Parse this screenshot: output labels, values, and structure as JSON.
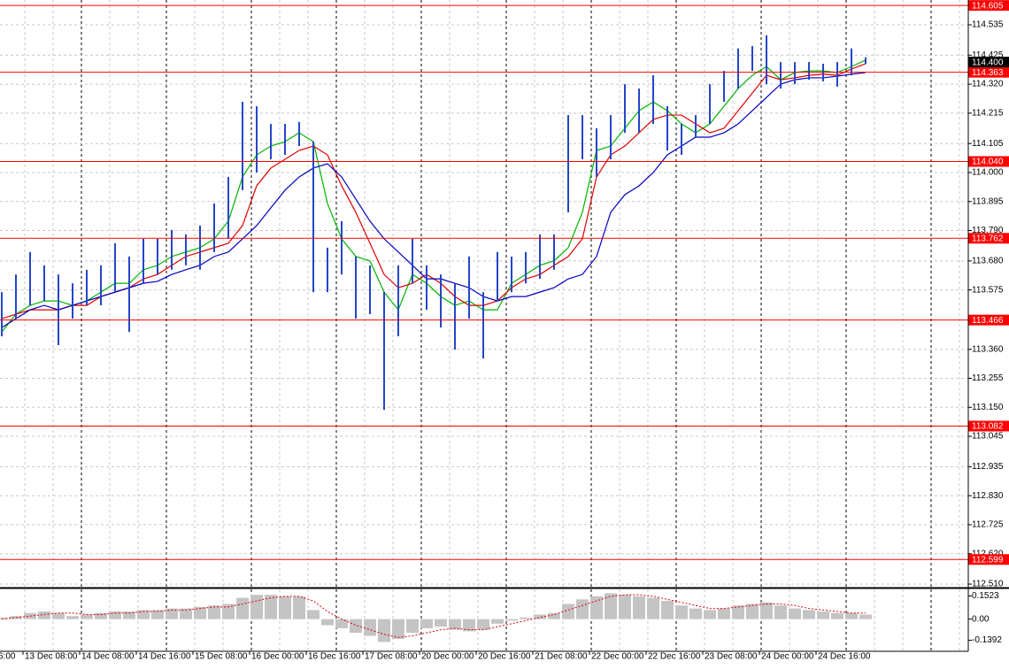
{
  "chart_data": [
    {
      "type": "ohlc",
      "color": "#2346c8",
      "high": [
        113.567,
        113.631,
        113.712,
        113.664,
        113.631,
        113.599,
        113.648,
        113.664,
        113.744,
        113.696,
        113.76,
        113.76,
        113.792,
        113.776,
        113.808,
        113.888,
        113.984,
        114.256,
        114.24,
        114.176,
        114.176,
        114.183,
        114.112,
        113.728,
        113.824,
        113.696,
        113.664,
        113.567,
        113.664,
        113.76,
        113.664,
        113.631,
        113.599,
        113.696,
        113.567,
        113.712,
        113.696,
        113.712,
        113.776,
        113.776,
        114.208,
        114.208,
        114.16,
        114.208,
        114.32,
        114.304,
        114.352,
        114.24,
        114.176,
        114.208,
        114.32,
        114.368,
        114.449,
        114.458,
        114.497,
        114.4,
        114.4,
        114.4,
        114.394,
        114.4,
        114.449,
        114.417
      ],
      "low": [
        113.407,
        113.471,
        113.519,
        113.535,
        113.375,
        113.471,
        113.519,
        113.519,
        113.567,
        113.423,
        113.599,
        113.631,
        113.648,
        113.664,
        113.648,
        113.712,
        113.76,
        113.936,
        114.0,
        114.048,
        114.064,
        114.096,
        113.567,
        113.567,
        113.631,
        113.471,
        113.487,
        113.141,
        113.407,
        113.599,
        113.503,
        113.439,
        113.359,
        113.471,
        113.327,
        113.535,
        113.567,
        113.599,
        113.615,
        113.648,
        113.856,
        114.048,
        113.984,
        114.048,
        114.144,
        114.144,
        114.176,
        114.08,
        114.064,
        114.128,
        114.176,
        114.256,
        114.304,
        114.368,
        114.32,
        114.304,
        114.32,
        114.336,
        114.33,
        114.311,
        114.352,
        114.394
      ],
      "ma": [
        {
          "color": "#00b400",
          "values": [
            113.423,
            113.487,
            113.519,
            113.535,
            113.535,
            113.519,
            113.535,
            113.567,
            113.599,
            113.599,
            113.648,
            113.664,
            113.696,
            113.712,
            113.728,
            113.76,
            113.824,
            113.984,
            114.064,
            114.096,
            114.112,
            114.144,
            114.112,
            113.888,
            113.76,
            113.696,
            113.68,
            113.567,
            113.503,
            113.631,
            113.599,
            113.551,
            113.519,
            113.535,
            113.503,
            113.503,
            113.599,
            113.631,
            113.664,
            113.68,
            113.728,
            113.856,
            114.08,
            114.096,
            114.16,
            114.224,
            114.256,
            114.224,
            114.176,
            114.144,
            114.176,
            114.24,
            114.304,
            114.352,
            114.384,
            114.336,
            114.362,
            114.368,
            114.368,
            114.362,
            114.384,
            114.407
          ]
        },
        {
          "color": "#e00000",
          "values": [
            113.471,
            113.487,
            113.503,
            113.503,
            113.503,
            113.519,
            113.519,
            113.551,
            113.567,
            113.583,
            113.615,
            113.631,
            113.664,
            113.696,
            113.712,
            113.728,
            113.744,
            113.808,
            113.952,
            114.016,
            114.048,
            114.08,
            114.096,
            114.064,
            113.952,
            113.856,
            113.744,
            113.631,
            113.583,
            113.599,
            113.631,
            113.599,
            113.551,
            113.519,
            113.519,
            113.535,
            113.583,
            113.615,
            113.631,
            113.664,
            113.696,
            113.76,
            113.984,
            114.064,
            114.096,
            114.144,
            114.192,
            114.208,
            114.208,
            114.176,
            114.144,
            114.16,
            114.224,
            114.288,
            114.352,
            114.336,
            114.343,
            114.352,
            114.356,
            114.352,
            114.375,
            114.394
          ]
        },
        {
          "color": "#0000c0",
          "values": [
            113.439,
            113.471,
            113.503,
            113.519,
            113.503,
            113.519,
            113.535,
            113.551,
            113.567,
            113.583,
            113.599,
            113.606,
            113.631,
            113.648,
            113.664,
            113.696,
            113.712,
            113.76,
            113.808,
            113.872,
            113.936,
            113.984,
            114.016,
            114.032,
            113.984,
            113.904,
            113.824,
            113.76,
            113.712,
            113.664,
            113.615,
            113.615,
            113.599,
            113.583,
            113.551,
            113.535,
            113.551,
            113.551,
            113.567,
            113.583,
            113.615,
            113.631,
            113.696,
            113.856,
            113.92,
            113.952,
            114.0,
            114.064,
            114.096,
            114.128,
            114.128,
            114.144,
            114.176,
            114.224,
            114.272,
            114.32,
            114.336,
            114.343,
            114.343,
            114.349,
            114.356,
            114.362
          ]
        }
      ],
      "levels": [
        114.605,
        114.363,
        {
          "value": 114.04,
          "label": "114.040"
        },
        113.762,
        113.466,
        113.082,
        112.599
      ],
      "level_color": "#ff0000",
      "last": {
        "value": 114.4,
        "label": "114.400"
      },
      "ylim": [
        112.5005,
        114.6247
      ],
      "yticks": [
        114.535,
        114.425,
        {
          "value": 114.32,
          "label": "114.320"
        },
        114.215,
        114.105,
        {
          "value": 114,
          "label": "114.000"
        },
        113.895,
        {
          "value": 113.79,
          "label": "113.790"
        },
        {
          "value": 113.68,
          "label": "113.680"
        },
        113.575,
        {
          "value": 113.36,
          "label": "113.360"
        },
        113.255,
        {
          "value": 113.15,
          "label": "113.150"
        },
        113.045,
        112.935,
        {
          "value": 112.83,
          "label": "112.830"
        },
        112.725,
        {
          "value": 112.62,
          "label": "112.620"
        },
        {
          "value": 112.51,
          "label": "112.510"
        }
      ],
      "xlim": [
        0,
        68.375
      ],
      "xticks": [
        {
          "value": -0.25,
          "label": "6:00"
        },
        {
          "value": 1.625,
          "label": "13 Dec 08:00"
        },
        {
          "value": 5.625,
          "label": "14 Dec 08:00"
        },
        {
          "value": 9.625,
          "label": "14 Dec 16:00"
        },
        {
          "value": 13.625,
          "label": "15 Dec 08:00"
        },
        {
          "value": 17.625,
          "label": "16 Dec 00:00"
        },
        {
          "value": 21.625,
          "label": "16 Dec 16:00"
        },
        {
          "value": 25.625,
          "label": "17 Dec 08:00"
        },
        {
          "value": 29.625,
          "label": "20 Dec 00:00"
        },
        {
          "value": 33.625,
          "label": "20 Dec 16:00"
        },
        {
          "value": 37.625,
          "label": "21 Dec 08:00"
        },
        {
          "value": 41.625,
          "label": "22 Dec 00:00"
        },
        {
          "value": 45.625,
          "label": "22 Dec 16:00"
        },
        {
          "value": 49.625,
          "label": "23 Dec 08:00"
        },
        {
          "value": 53.625,
          "label": "24 Dec 00:00"
        },
        {
          "value": 57.625,
          "label": "24 Dec 16:00"
        }
      ],
      "grid": true
    },
    {
      "type": "bar",
      "color": "#c4c4c4",
      "values": [
        0.01,
        0.02,
        0.04,
        0.05,
        0.04,
        0.02,
        0.03,
        0.04,
        0.05,
        0.05,
        0.06,
        0.06,
        0.07,
        0.07,
        0.08,
        0.09,
        0.1,
        0.14,
        0.16,
        0.16,
        0.15,
        0.15,
        0.06,
        -0.04,
        -0.06,
        -0.09,
        -0.11,
        -0.15,
        -0.13,
        -0.09,
        -0.06,
        -0.05,
        -0.07,
        -0.08,
        -0.07,
        -0.03,
        -0.01,
        0.01,
        0.03,
        0.04,
        0.1,
        0.13,
        0.15,
        0.17,
        0.16,
        0.15,
        0.14,
        0.12,
        0.09,
        0.07,
        0.06,
        0.07,
        0.09,
        0.1,
        0.11,
        0.09,
        0.07,
        0.06,
        0.05,
        0.04,
        0.04,
        0.03
      ],
      "signal": {
        "color": "#e00000",
        "values": [
          0,
          0.01,
          0.02,
          0.03,
          0.04,
          0.04,
          0.03,
          0.03,
          0.04,
          0.04,
          0.05,
          0.05,
          0.06,
          0.06,
          0.07,
          0.08,
          0.08,
          0.1,
          0.12,
          0.14,
          0.15,
          0.15,
          0.12,
          0.05,
          0,
          -0.04,
          -0.07,
          -0.1,
          -0.12,
          -0.11,
          -0.09,
          -0.07,
          -0.06,
          -0.07,
          -0.07,
          -0.05,
          -0.03,
          -0.01,
          0.01,
          0.03,
          0.06,
          0.09,
          0.12,
          0.15,
          0.16,
          0.16,
          0.15,
          0.13,
          0.11,
          0.09,
          0.07,
          0.07,
          0.08,
          0.09,
          0.1,
          0.1,
          0.09,
          0.07,
          0.06,
          0.05,
          0.04,
          0.04
        ]
      },
      "ylim": [
        -0.2,
        0.19
      ],
      "yticks": [
        0.1523,
        {
          "value": 0,
          "label": "0.00"
        },
        -0.1392
      ]
    }
  ]
}
